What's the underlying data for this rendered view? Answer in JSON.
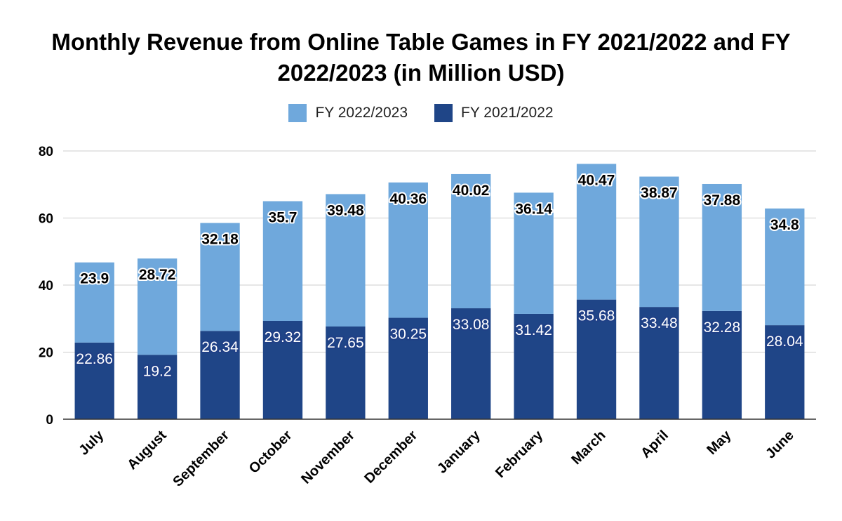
{
  "chart_data": {
    "type": "bar",
    "stacked": true,
    "title": "Monthly Revenue from Online Table Games in FY 2021/2022 and FY 2022/2023 (in Million USD)",
    "categories": [
      "July",
      "August",
      "September",
      "October",
      "November",
      "December",
      "January",
      "February",
      "March",
      "April",
      "May",
      "June"
    ],
    "series": [
      {
        "name": "FY 2021/2022",
        "color": "#1f4587",
        "values": [
          22.86,
          19.2,
          26.34,
          29.32,
          27.65,
          30.25,
          33.08,
          31.42,
          35.68,
          33.48,
          32.28,
          28.04
        ]
      },
      {
        "name": "FY 2022/2023",
        "color": "#6fa8dc",
        "values": [
          23.9,
          28.72,
          32.18,
          35.7,
          39.48,
          40.36,
          40.02,
          36.14,
          40.47,
          38.87,
          37.88,
          34.8
        ]
      }
    ],
    "legend_order": [
      1,
      0
    ],
    "ylim": [
      0,
      80
    ],
    "yticks": [
      0,
      20,
      40,
      60,
      80
    ],
    "grid": true,
    "legend_position": "top"
  }
}
